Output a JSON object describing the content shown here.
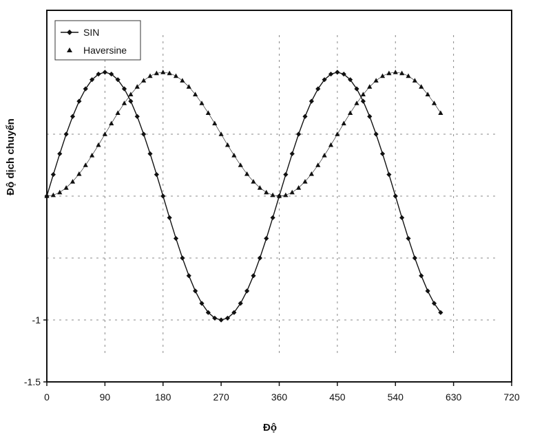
{
  "chart_data": {
    "type": "line",
    "title": "",
    "xlabel": "Độ",
    "ylabel": "Độ dịch chuyển",
    "xlim": [
      0,
      720
    ],
    "ylim": [
      -1.5,
      1.5
    ],
    "x_ticks": [
      0,
      90,
      180,
      270,
      360,
      450,
      540,
      630,
      720
    ],
    "y_tick_labels": [
      {
        "value": -1,
        "label": "-1"
      },
      {
        "value": -1.5,
        "label": "-1.5"
      }
    ],
    "grid": "dashed, sparse",
    "legend_position": "top-left",
    "x": [
      0,
      10,
      20,
      30,
      40,
      50,
      60,
      70,
      80,
      90,
      100,
      110,
      120,
      130,
      140,
      150,
      160,
      170,
      180,
      190,
      200,
      210,
      220,
      230,
      240,
      250,
      260,
      270,
      280,
      290,
      300,
      310,
      320,
      330,
      340,
      350,
      360,
      370,
      380,
      390,
      400,
      410,
      420,
      430,
      440,
      450,
      460,
      470,
      480,
      490,
      500,
      510,
      520,
      530,
      540,
      550,
      560,
      570,
      580,
      590,
      600,
      610
    ],
    "series": [
      {
        "name": "SIN",
        "marker": "diamond",
        "color": "#111111",
        "values": [
          0,
          0.174,
          0.342,
          0.5,
          0.643,
          0.766,
          0.866,
          0.94,
          0.985,
          1,
          0.985,
          0.94,
          0.866,
          0.766,
          0.643,
          0.5,
          0.342,
          0.174,
          0,
          -0.174,
          -0.342,
          -0.5,
          -0.643,
          -0.766,
          -0.866,
          -0.94,
          -0.985,
          -1,
          -0.985,
          -0.94,
          -0.866,
          -0.766,
          -0.643,
          -0.5,
          -0.342,
          -0.174,
          0,
          0.174,
          0.342,
          0.5,
          0.643,
          0.766,
          0.866,
          0.94,
          0.985,
          1,
          0.985,
          0.94,
          0.866,
          0.766,
          0.643,
          0.5,
          0.342,
          0.174,
          0,
          -0.174,
          -0.342,
          -0.5,
          -0.643,
          -0.766,
          -0.866,
          -0.94
        ]
      },
      {
        "name": "Haversine",
        "marker": "triangle",
        "color": "#111111",
        "values": [
          0,
          0.008,
          0.03,
          0.067,
          0.117,
          0.179,
          0.25,
          0.329,
          0.413,
          0.5,
          0.587,
          0.671,
          0.75,
          0.821,
          0.883,
          0.933,
          0.97,
          0.992,
          1,
          0.992,
          0.97,
          0.933,
          0.883,
          0.821,
          0.75,
          0.671,
          0.587,
          0.5,
          0.413,
          0.329,
          0.25,
          0.179,
          0.117,
          0.067,
          0.03,
          0.008,
          0,
          0.008,
          0.03,
          0.067,
          0.117,
          0.179,
          0.25,
          0.329,
          0.413,
          0.5,
          0.587,
          0.671,
          0.75,
          0.821,
          0.883,
          0.933,
          0.97,
          0.992,
          1,
          0.992,
          0.97,
          0.933,
          0.883,
          0.821,
          0.75,
          0.671
        ]
      }
    ]
  }
}
